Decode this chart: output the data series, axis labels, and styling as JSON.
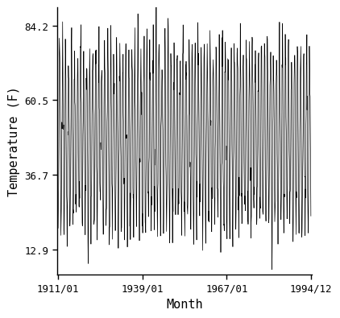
{
  "title": "",
  "xlabel": "Month",
  "ylabel": "Temperature (F)",
  "x_start_year": 1911,
  "x_start_month": 1,
  "x_end_year": 1994,
  "x_end_month": 12,
  "yticks": [
    12.9,
    36.7,
    60.5,
    84.2
  ],
  "ylim": [
    5.0,
    90.0
  ],
  "xtick_labels": [
    "1911/01",
    "1939/01",
    "1967/01",
    "1994/12"
  ],
  "xtick_years": [
    1911,
    1939,
    1967,
    1994
  ],
  "xtick_months": [
    1,
    1,
    1,
    12
  ],
  "amplitude": 27.65,
  "mean_temp": 48.55,
  "noise_std": 5.5,
  "line_color": "#000000",
  "line_width": 0.5,
  "bg_color": "#ffffff",
  "font_size_ticks": 9,
  "font_size_label": 11
}
